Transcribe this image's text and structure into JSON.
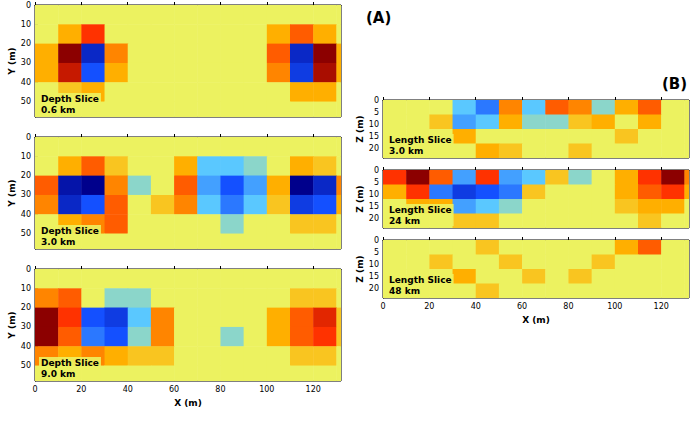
{
  "panel_labels": [
    "(A)",
    "(B)"
  ],
  "chart_data": [
    {
      "type": "heatmap",
      "title": "Depth Slice",
      "subtitle": "0.6 km",
      "ylabel": "Y (m)",
      "xlim": [
        0,
        132
      ],
      "xticks": [
        0,
        20,
        40,
        60,
        80,
        100,
        120
      ],
      "ylim": [
        0,
        58
      ],
      "yticks": [
        0,
        10,
        20,
        30,
        40,
        50
      ],
      "tick_labels": "y",
      "zlim": [
        -1,
        1
      ],
      "x": [
        5,
        15,
        25,
        35,
        45,
        55,
        65,
        75,
        85,
        95,
        105,
        115,
        125,
        135
      ],
      "y": [
        5,
        15,
        25,
        35,
        45,
        55
      ],
      "values": [
        [
          0,
          0,
          0,
          0,
          0,
          0,
          0,
          0,
          0,
          0,
          0,
          0,
          0,
          0
        ],
        [
          0,
          0.3,
          0.6,
          0,
          0,
          0,
          0,
          0,
          0,
          0,
          0.3,
          0.5,
          0.3,
          0
        ],
        [
          0.3,
          1,
          -0.8,
          0.4,
          0,
          0,
          0,
          0,
          0,
          0,
          0.5,
          -0.8,
          1,
          0.3
        ],
        [
          0.3,
          0.8,
          -0.6,
          0.3,
          0,
          0,
          0,
          0,
          0,
          0,
          0.4,
          -0.7,
          0.9,
          0.3
        ],
        [
          0,
          0.2,
          0.3,
          0,
          0,
          0,
          0,
          0,
          0,
          0,
          0,
          0.3,
          0.3,
          0
        ],
        [
          0,
          0,
          0,
          0,
          0,
          0,
          0,
          0,
          0,
          0,
          0,
          0,
          0,
          0
        ]
      ]
    },
    {
      "type": "heatmap",
      "title": "Depth Slice",
      "subtitle": "3.0 km",
      "ylabel": "Y (m)",
      "xlim": [
        0,
        132
      ],
      "xticks": [
        0,
        20,
        40,
        60,
        80,
        100,
        120
      ],
      "ylim": [
        0,
        58
      ],
      "yticks": [
        0,
        10,
        20,
        30,
        40,
        50
      ],
      "tick_labels": "y",
      "zlim": [
        -1,
        1
      ],
      "x": [
        5,
        15,
        25,
        35,
        45,
        55,
        65,
        75,
        85,
        95,
        105,
        115,
        125,
        135
      ],
      "y": [
        5,
        15,
        25,
        35,
        45,
        55
      ],
      "values": [
        [
          0,
          0,
          0,
          0,
          0,
          0,
          0,
          0,
          0,
          0,
          0,
          0,
          0,
          0
        ],
        [
          0,
          0.3,
          0.5,
          0.2,
          0,
          0,
          0.3,
          -0.3,
          -0.3,
          -0.2,
          0,
          0.3,
          0.2,
          0
        ],
        [
          0.5,
          -0.9,
          -1,
          0.4,
          -0.2,
          0,
          0.5,
          -0.4,
          -0.6,
          -0.4,
          0.3,
          -1,
          -0.8,
          0.4
        ],
        [
          0.4,
          -0.8,
          -0.6,
          0.5,
          0,
          0.2,
          0.4,
          -0.3,
          -0.5,
          -0.3,
          0.2,
          -0.7,
          -0.6,
          0.3
        ],
        [
          0,
          0.3,
          0.4,
          0.5,
          0,
          0,
          0,
          0,
          -0.2,
          0,
          0,
          0.2,
          0.2,
          0
        ],
        [
          0,
          0,
          0,
          0,
          0,
          0,
          0,
          0,
          0,
          0,
          0,
          0,
          0,
          0
        ]
      ]
    },
    {
      "type": "heatmap",
      "title": "Depth Slice",
      "subtitle": "9.0 km",
      "xlabel": "X (m)",
      "ylabel": "Y (m)",
      "xlim": [
        0,
        132
      ],
      "xticks": [
        0,
        20,
        40,
        60,
        80,
        100,
        120
      ],
      "ylim": [
        0,
        58
      ],
      "yticks": [
        0,
        10,
        20,
        30,
        40,
        50
      ],
      "tick_labels": true,
      "zlim": [
        -1,
        1
      ],
      "x": [
        5,
        15,
        25,
        35,
        45,
        55,
        65,
        75,
        85,
        95,
        105,
        115,
        125,
        135
      ],
      "y": [
        5,
        15,
        25,
        35,
        45,
        55
      ],
      "values": [
        [
          0,
          0,
          0,
          0,
          0,
          0,
          0,
          0,
          0,
          0,
          0,
          0,
          0,
          0
        ],
        [
          0.4,
          0.5,
          0,
          -0.2,
          -0.2,
          0,
          0,
          0,
          0,
          0,
          0,
          0.2,
          0.2,
          0
        ],
        [
          1,
          0.6,
          -0.6,
          -0.7,
          -0.3,
          0.4,
          0,
          0,
          0,
          0,
          0.3,
          0.5,
          0.7,
          0.2
        ],
        [
          1,
          0.5,
          -0.5,
          -0.6,
          -0.2,
          0.4,
          0,
          0,
          -0.2,
          0,
          0.3,
          0.5,
          0.6,
          0.2
        ],
        [
          0.4,
          0.3,
          0.4,
          0.3,
          0.2,
          0.2,
          0,
          0,
          0,
          0,
          0,
          0.2,
          0.2,
          0
        ],
        [
          0,
          0,
          0,
          0,
          0,
          0,
          0,
          0,
          0,
          0,
          0,
          0,
          0,
          0
        ]
      ]
    },
    {
      "type": "heatmap",
      "title": "Length Slice",
      "subtitle": "3.0 km",
      "ylabel": "Z (m)",
      "xlim": [
        0,
        132
      ],
      "xticks": [
        0,
        20,
        40,
        60,
        80,
        100,
        120
      ],
      "ylim": [
        0,
        24
      ],
      "yticks": [
        0,
        5,
        10,
        15,
        20
      ],
      "tick_labels": "y",
      "zlim": [
        -1,
        1
      ],
      "x": [
        5,
        15,
        25,
        35,
        45,
        55,
        65,
        75,
        85,
        95,
        105,
        115,
        125,
        135
      ],
      "y": [
        3,
        9,
        15,
        21
      ],
      "values": [
        [
          0,
          0,
          0,
          -0.3,
          -0.5,
          0.4,
          -0.3,
          0.5,
          0.4,
          -0.2,
          0.3,
          0.5,
          0,
          0
        ],
        [
          0,
          0,
          0.2,
          -0.4,
          -0.3,
          0.3,
          -0.2,
          -0.2,
          0.2,
          0.3,
          0,
          0.3,
          0,
          0
        ],
        [
          0,
          0,
          0,
          0.3,
          0,
          0,
          0,
          0,
          0,
          0,
          0.2,
          0,
          0,
          0
        ],
        [
          0,
          0,
          0,
          0,
          0.3,
          0.2,
          0,
          0,
          0.2,
          0,
          0,
          0,
          0,
          0
        ]
      ]
    },
    {
      "type": "heatmap",
      "title": "Length Slice",
      "subtitle": "24 km",
      "ylabel": "Z (m)",
      "xlim": [
        0,
        132
      ],
      "xticks": [
        0,
        20,
        40,
        60,
        80,
        100,
        120
      ],
      "ylim": [
        0,
        24
      ],
      "yticks": [
        0,
        5,
        10,
        15,
        20
      ],
      "tick_labels": "y",
      "zlim": [
        -1,
        1
      ],
      "x": [
        5,
        15,
        25,
        35,
        45,
        55,
        65,
        75,
        85,
        95,
        105,
        115,
        125,
        135
      ],
      "y": [
        3,
        9,
        15,
        21
      ],
      "values": [
        [
          0.6,
          1,
          0.5,
          -0.4,
          0.6,
          -0.4,
          -0.3,
          0.2,
          -0.2,
          0,
          0.3,
          0.6,
          1,
          0.4
        ],
        [
          0.3,
          0.6,
          -0.5,
          -0.7,
          -0.6,
          -0.5,
          0.2,
          0,
          0,
          0,
          0.3,
          0.5,
          0.6,
          0.3
        ],
        [
          0,
          0.3,
          0.3,
          -0.4,
          -0.3,
          -0.2,
          0,
          0,
          0,
          0,
          0.2,
          0.3,
          0.3,
          0
        ],
        [
          0,
          0,
          0,
          0.2,
          0.2,
          0,
          0,
          0,
          0,
          0,
          0,
          0.2,
          0,
          0
        ]
      ]
    },
    {
      "type": "heatmap",
      "title": "Length Slice",
      "subtitle": "48 km",
      "xlabel": "X (m)",
      "ylabel": "Z (m)",
      "xlim": [
        0,
        132
      ],
      "xticks": [
        0,
        20,
        40,
        60,
        80,
        100,
        120
      ],
      "ylim": [
        0,
        24
      ],
      "yticks": [
        0,
        5,
        10,
        15,
        20
      ],
      "tick_labels": true,
      "zlim": [
        -1,
        1
      ],
      "x": [
        5,
        15,
        25,
        35,
        45,
        55,
        65,
        75,
        85,
        95,
        105,
        115,
        125,
        135
      ],
      "y": [
        3,
        9,
        15,
        21
      ],
      "values": [
        [
          0,
          0,
          0,
          0,
          0.2,
          0,
          0,
          0,
          0,
          0,
          0.3,
          0.5,
          0,
          0
        ],
        [
          0,
          0,
          0.2,
          0,
          0,
          0.2,
          0,
          0,
          0,
          0.2,
          0,
          0,
          0,
          0
        ],
        [
          0,
          0,
          0,
          0.3,
          0,
          0,
          0.2,
          0,
          0.2,
          0,
          0,
          0,
          0,
          0
        ],
        [
          0,
          0,
          0,
          0,
          0.2,
          0,
          0,
          0,
          0,
          0,
          0,
          0,
          0,
          0
        ]
      ]
    }
  ]
}
